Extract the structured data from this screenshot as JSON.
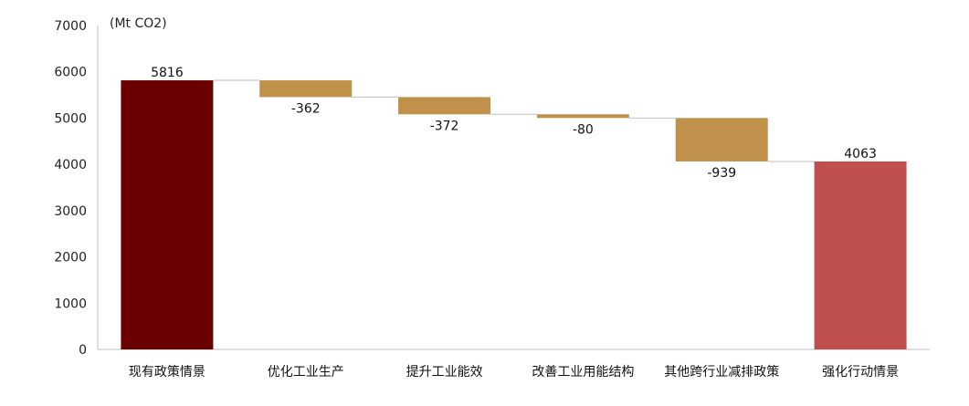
{
  "chart_data": {
    "type": "bar",
    "subtype": "waterfall",
    "unit_label": "(Mt CO2)",
    "categories": [
      "现有政策情景",
      "优化工业生产",
      "提升工业能效",
      "改善工业用能结构",
      "其他跨行业减排政策",
      "强化行动情景"
    ],
    "values": [
      5816,
      -362,
      -372,
      -80,
      -939,
      4063
    ],
    "data_labels": [
      "5816",
      "-362",
      "-372",
      "-80",
      "-939",
      "4063"
    ],
    "bar_kinds": [
      "total",
      "delta",
      "delta",
      "delta",
      "delta",
      "total"
    ],
    "ylim": [
      0,
      7000
    ],
    "yticks": [
      "0",
      "1000",
      "2000",
      "3000",
      "4000",
      "5000",
      "6000",
      "7000"
    ],
    "grid": false,
    "colors": {
      "start_total": "#6B0000",
      "delta": "#C0914A",
      "end_total": "#C0504D",
      "connector": "#BFBFBF",
      "axis": "#BFBFBF"
    }
  }
}
